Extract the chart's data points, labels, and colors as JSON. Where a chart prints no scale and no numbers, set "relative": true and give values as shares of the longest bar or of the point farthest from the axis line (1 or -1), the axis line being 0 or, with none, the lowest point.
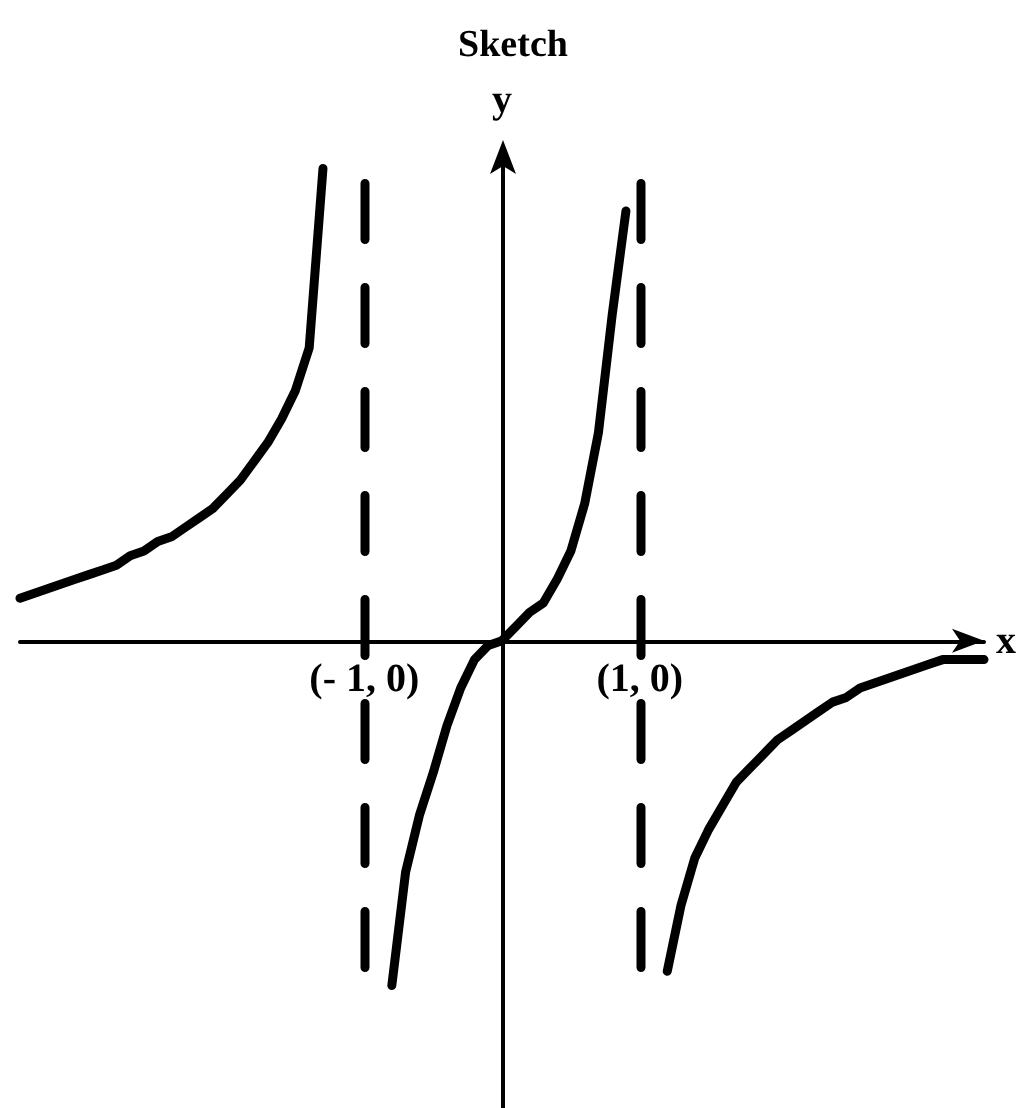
{
  "chart_data": {
    "type": "line",
    "title": "Sketch",
    "xlabel": "x",
    "ylabel": "y",
    "relative": true,
    "tick_labels": "x",
    "marker": "none",
    "categories": [
      null,
      null,
      null,
      null,
      null,
      null,
      null,
      null,
      null,
      null,
      null,
      null,
      null,
      null,
      null,
      null,
      null,
      null,
      null,
      null,
      null,
      null,
      null,
      null,
      null,
      "(- 1, 0)",
      null,
      null,
      null,
      null,
      null,
      null,
      null,
      null,
      null,
      null,
      null,
      null,
      null,
      null,
      null,
      null,
      null,
      null,
      null,
      "(1, 0)",
      null,
      null,
      null,
      null,
      null,
      null,
      null,
      null,
      null,
      null,
      null,
      null,
      null,
      null,
      null,
      null,
      null,
      null,
      null,
      null,
      null,
      null,
      null,
      null,
      null
    ],
    "series": [
      {
        "color": "#000000",
        "values": [
          0.09,
          0.1,
          0.11,
          0.12,
          0.13,
          0.14,
          0.15,
          0.16,
          0.18,
          0.19,
          0.21,
          0.22,
          0.24,
          0.26,
          0.28,
          0.31,
          0.34,
          0.38,
          0.42,
          0.47,
          0.53,
          0.62,
          1.0,
          null,
          null,
          null,
          null,
          null,
          null,
          null,
          null,
          null,
          null,
          null,
          null,
          null,
          null,
          null,
          null,
          null,
          null,
          null,
          null,
          null,
          null,
          null,
          null,
          null,
          null,
          null,
          null,
          null,
          null,
          null,
          null,
          null,
          null,
          null,
          null,
          null,
          null,
          null,
          null,
          null,
          null,
          null,
          null,
          null,
          null,
          null,
          null
        ]
      },
      {
        "color": "#000000",
        "values": [
          null,
          null,
          null,
          null,
          null,
          null,
          null,
          null,
          null,
          null,
          null,
          null,
          null,
          null,
          null,
          null,
          null,
          null,
          null,
          null,
          null,
          null,
          null,
          null,
          null,
          null,
          null,
          -0.73,
          -0.49,
          -0.37,
          -0.28,
          -0.18,
          -0.1,
          -0.04,
          -0.01,
          0,
          0.03,
          0.06,
          0.08,
          0.13,
          0.19,
          0.29,
          0.44,
          0.69,
          0.91,
          null,
          null,
          null,
          null,
          null,
          null,
          null,
          null,
          null,
          null,
          null,
          null,
          null,
          null,
          null,
          null,
          null,
          null,
          null,
          null,
          null,
          null,
          null,
          null,
          null,
          null
        ]
      },
      {
        "color": "#000000",
        "values": [
          null,
          null,
          null,
          null,
          null,
          null,
          null,
          null,
          null,
          null,
          null,
          null,
          null,
          null,
          null,
          null,
          null,
          null,
          null,
          null,
          null,
          null,
          null,
          null,
          null,
          null,
          null,
          null,
          null,
          null,
          null,
          null,
          null,
          null,
          null,
          null,
          null,
          null,
          null,
          null,
          null,
          null,
          null,
          null,
          null,
          null,
          null,
          -0.7,
          -0.56,
          -0.46,
          -0.4,
          -0.35,
          -0.3,
          -0.27,
          -0.24,
          -0.21,
          -0.19,
          -0.17,
          -0.15,
          -0.13,
          -0.12,
          -0.1,
          -0.09,
          -0.08,
          -0.07,
          -0.06,
          -0.05,
          -0.04,
          -0.04,
          -0.04,
          -0.04
        ]
      }
    ],
    "ref_lines": [
      {
        "axis": "x",
        "value": "(- 1, 0)",
        "color": "#000000",
        "line_style": "dashed"
      },
      {
        "axis": "x",
        "value": "(1, 0)",
        "color": "#000000",
        "line_style": "dashed"
      }
    ]
  }
}
